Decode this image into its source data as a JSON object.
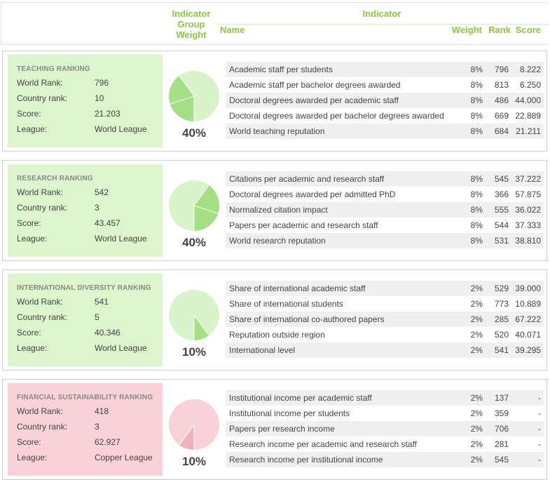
{
  "header": {
    "group_weight": "Indicator Group Weight",
    "indicator": "Indicator",
    "name": "Name",
    "weight": "Weight",
    "rank": "Rank",
    "score": "Score"
  },
  "labels": {
    "world_rank": "World Rank:",
    "country_rank": "Country rank:",
    "score": "Score:",
    "league": "League:"
  },
  "colors": {
    "green_bg": "#dcf5cc",
    "pink_bg": "#f8d2d6",
    "green_pie_light": "#d9f3cb",
    "green_pie_dark": "#a5df86",
    "pink_pie_light": "#f9d2d7",
    "pink_pie_dark": "#f1b2ba",
    "header_green": "#8cc63f"
  },
  "sections": [
    {
      "title": "TEACHING RANKING",
      "world_rank": "796",
      "country_rank": "10",
      "score": "21.203",
      "league": "World League",
      "weight_pct": "40%",
      "pie_fraction": 0.4,
      "pie_start_deg": 90,
      "theme": "green",
      "indicators": [
        {
          "name": "Academic staff per students",
          "weight": "8%",
          "rank": "796",
          "score": "8.222"
        },
        {
          "name": "Academic staff per bachelor degrees awarded",
          "weight": "8%",
          "rank": "813",
          "score": "6.250"
        },
        {
          "name": "Doctoral degrees awarded per academic staff",
          "weight": "8%",
          "rank": "486",
          "score": "44.000"
        },
        {
          "name": "Doctoral degrees awarded per bachelor degrees awarded",
          "weight": "8%",
          "rank": "669",
          "score": "22.889"
        },
        {
          "name": "World teaching reputation",
          "weight": "8%",
          "rank": "684",
          "score": "21.211"
        }
      ]
    },
    {
      "title": "RESEARCH RANKING",
      "world_rank": "542",
      "country_rank": "3",
      "score": "43.457",
      "league": "World League",
      "weight_pct": "40%",
      "pie_fraction": 0.4,
      "pie_start_deg": -54,
      "theme": "green",
      "indicators": [
        {
          "name": "Citations per academic and research staff",
          "weight": "8%",
          "rank": "545",
          "score": "37.222"
        },
        {
          "name": "Doctoral degrees awarded per admitted PhD",
          "weight": "8%",
          "rank": "366",
          "score": "57.875"
        },
        {
          "name": "Normalized citation impact",
          "weight": "8%",
          "rank": "555",
          "score": "36.022"
        },
        {
          "name": "Papers per academic and research staff",
          "weight": "8%",
          "rank": "544",
          "score": "37.333"
        },
        {
          "name": "World research reputation",
          "weight": "8%",
          "rank": "531",
          "score": "38.810"
        }
      ]
    },
    {
      "title": "INTERNATIONAL DIVERSITY RANKING",
      "world_rank": "541",
      "country_rank": "5",
      "score": "40.346",
      "league": "World League",
      "weight_pct": "10%",
      "pie_fraction": 0.1,
      "pie_start_deg": 54,
      "theme": "green",
      "indicators": [
        {
          "name": "Share of international academic staff",
          "weight": "2%",
          "rank": "529",
          "score": "39.000"
        },
        {
          "name": "Share of international students",
          "weight": "2%",
          "rank": "773",
          "score": "10.889"
        },
        {
          "name": "Share of international co-authored papers",
          "weight": "2%",
          "rank": "285",
          "score": "67.222"
        },
        {
          "name": "Reputation outside region",
          "weight": "2%",
          "rank": "520",
          "score": "40.071"
        },
        {
          "name": "International level",
          "weight": "2%",
          "rank": "541",
          "score": "39.295"
        }
      ]
    },
    {
      "title": "FINANCIAL SUSTAINABILITY RANKING",
      "world_rank": "418",
      "country_rank": "3",
      "score": "62.927",
      "league": "Copper League",
      "weight_pct": "10%",
      "pie_fraction": 0.1,
      "pie_start_deg": 90,
      "theme": "pink",
      "indicators": [
        {
          "name": "Institutional income per academic staff",
          "weight": "2%",
          "rank": "137",
          "score": "-"
        },
        {
          "name": "Institutional income per students",
          "weight": "2%",
          "rank": "359",
          "score": "-"
        },
        {
          "name": "Papers per research income",
          "weight": "2%",
          "rank": "706",
          "score": "-"
        },
        {
          "name": "Research income per academic and research staff",
          "weight": "2%",
          "rank": "281",
          "score": "-"
        },
        {
          "name": "Research income per institutional income",
          "weight": "2%",
          "rank": "545",
          "score": "-"
        }
      ]
    }
  ]
}
